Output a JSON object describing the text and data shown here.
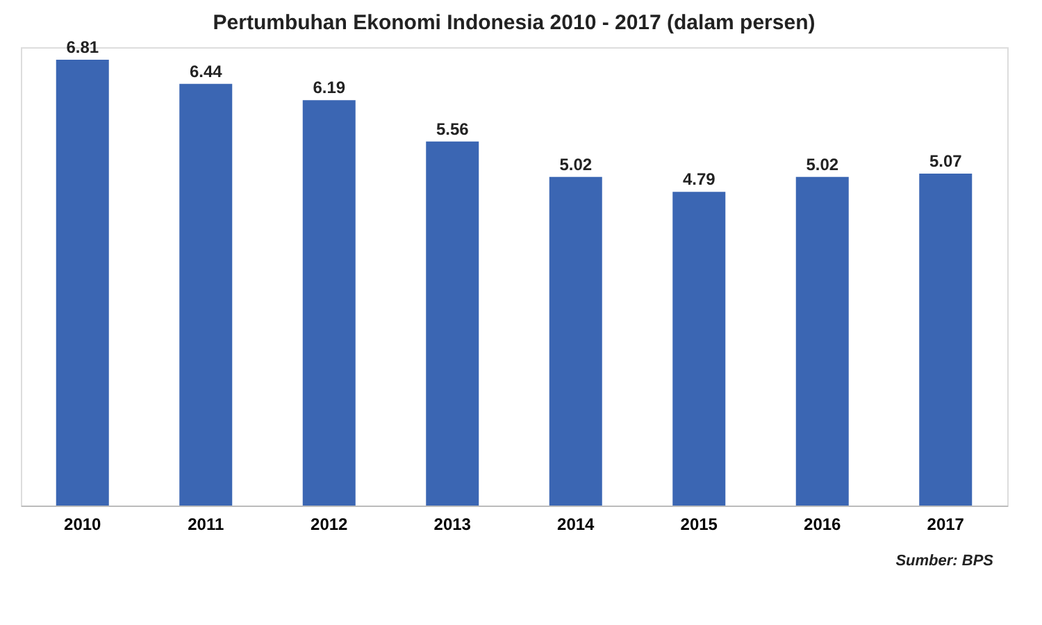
{
  "chart_data": {
    "type": "bar",
    "title": "Pertumbuhan Ekonomi Indonesia 2010 - 2017 (dalam persen)",
    "categories": [
      "2010",
      "2011",
      "2012",
      "2013",
      "2014",
      "2015",
      "2016",
      "2017"
    ],
    "values": [
      6.81,
      6.44,
      6.19,
      5.56,
      5.02,
      4.79,
      5.02,
      5.07
    ],
    "color": "#3b66b3",
    "data_labels": true,
    "grid": false,
    "annotations": [
      "Sumber: BPS"
    ]
  }
}
